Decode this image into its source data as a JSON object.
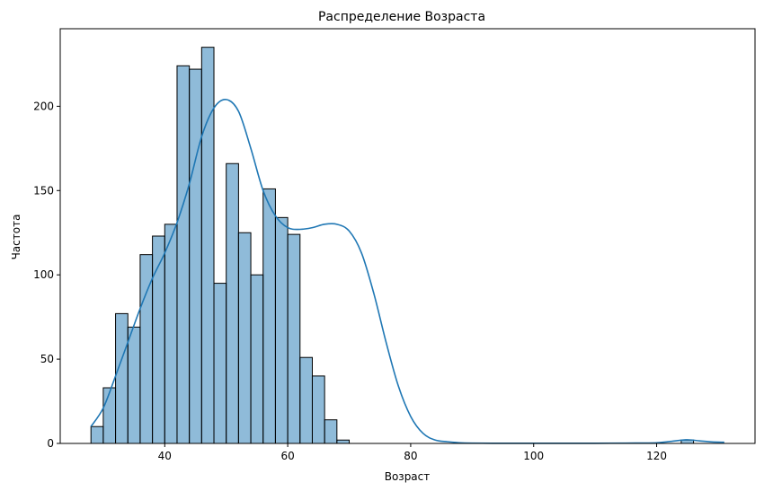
{
  "chart_data": {
    "type": "bar",
    "title": "Распределение Возраста",
    "xlabel": "Возраст",
    "ylabel": "Частота",
    "xlim": [
      23,
      136
    ],
    "ylim": [
      0,
      246
    ],
    "xticks": [
      40,
      60,
      80,
      100,
      120
    ],
    "yticks": [
      0,
      50,
      100,
      150,
      200
    ],
    "grid": false,
    "legend": "none",
    "bar_color": "#1f77b4",
    "bar_fill_opacity": 0.5,
    "bar_edge_color": "#000000",
    "kde_color": "#1f77b4",
    "bins": {
      "x_start": [
        28.0,
        30.0,
        32.0,
        34.0,
        36.0,
        38.0,
        40.0,
        42.0,
        44.0,
        46.0,
        48.0,
        50.0,
        52.0,
        54.0,
        56.0,
        58.0,
        60.0,
        62.0,
        64.0,
        66.0,
        68.0,
        70.0,
        72.0,
        74.0,
        76.0,
        78.0,
        80.0,
        82.0,
        84.0,
        86.0,
        88.0,
        90.0,
        92.0,
        94.0,
        96.0,
        98.0,
        100.0,
        102.0,
        104.0,
        106.0,
        108.0,
        110.0,
        112.0,
        114.0,
        116.0,
        118.0,
        120.0,
        122.0,
        124.0,
        126.0,
        128.0,
        130.0
      ],
      "x_end": [
        30.0,
        32.0,
        34.0,
        36.0,
        38.0,
        40.0,
        42.0,
        44.0,
        46.0,
        48.0,
        50.0,
        52.0,
        54.0,
        56.0,
        58.0,
        60.0,
        62.0,
        64.0,
        66.0,
        68.0,
        70.0,
        72.0,
        74.0,
        76.0,
        78.0,
        80.0,
        82.0,
        84.0,
        86.0,
        88.0,
        90.0,
        92.0,
        94.0,
        96.0,
        98.0,
        100.0,
        102.0,
        104.0,
        106.0,
        108.0,
        110.0,
        112.0,
        114.0,
        116.0,
        118.0,
        120.0,
        122.0,
        124.0,
        126.0,
        128.0,
        130.0,
        132.0
      ],
      "counts": [
        10,
        33,
        77,
        69,
        112,
        123,
        130,
        224,
        222,
        235,
        95,
        166,
        125,
        100,
        151,
        134,
        124,
        51,
        40,
        14,
        2,
        0,
        0,
        0,
        0,
        0,
        0,
        0,
        0,
        0,
        0,
        0,
        0,
        0,
        0,
        0,
        0,
        0,
        0,
        0,
        0,
        0,
        0,
        0,
        0,
        0,
        0,
        0,
        2,
        0,
        0,
        0
      ]
    },
    "kde": {
      "x": [
        28,
        30,
        32,
        34,
        36,
        38,
        40,
        42,
        44,
        46,
        48,
        50,
        52,
        54,
        56,
        58,
        60,
        62,
        64,
        66,
        68,
        70,
        72,
        74,
        76,
        78,
        80,
        82,
        84,
        86,
        88,
        90,
        95,
        100,
        105,
        110,
        115,
        120,
        123,
        125,
        127,
        129,
        131
      ],
      "y": [
        10,
        21,
        40,
        60,
        80,
        98,
        113,
        131,
        154,
        182,
        199,
        204,
        197,
        175,
        150,
        135,
        128,
        127,
        128,
        130,
        130,
        126,
        113,
        89,
        60,
        34,
        16,
        6,
        2,
        1,
        0.4,
        0.2,
        0.1,
        0.1,
        0.1,
        0.1,
        0.2,
        0.4,
        1.5,
        2.2,
        1.5,
        0.9,
        0.7
      ]
    }
  }
}
